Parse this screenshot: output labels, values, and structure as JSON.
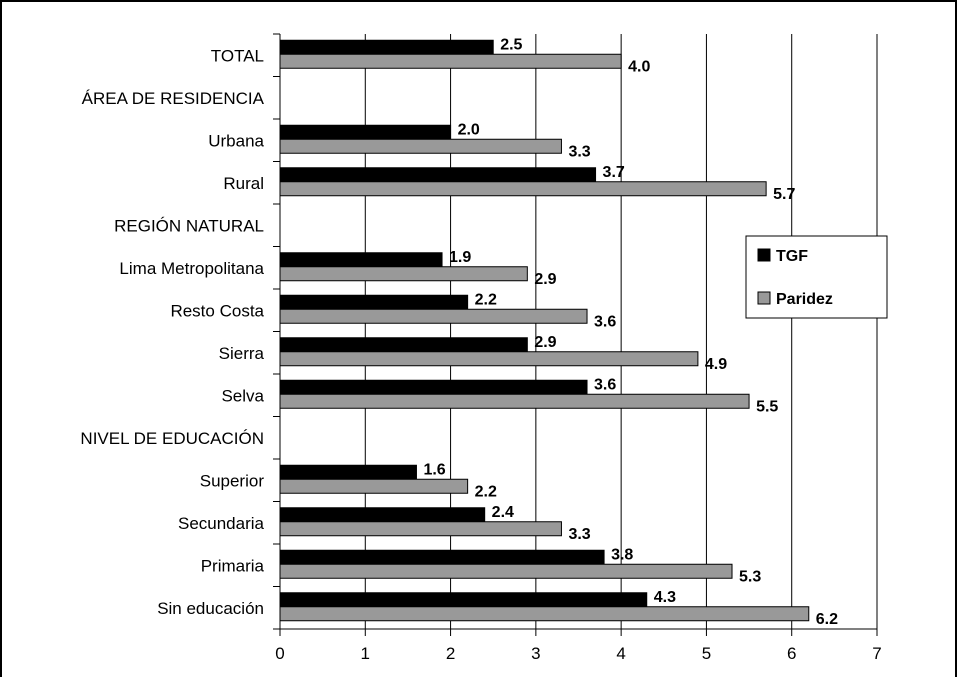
{
  "chart_data": {
    "type": "bar",
    "orientation": "horizontal",
    "categories": [
      "TOTAL",
      "ÁREA DE RESIDENCIA",
      "Urbana",
      "Rural",
      "REGIÓN NATURAL",
      "Lima Metropolitana",
      "Resto Costa",
      "Sierra",
      "Selva",
      "NIVEL DE EDUCACIÓN",
      "Superior",
      "Secundaria",
      "Primaria",
      "Sin educación"
    ],
    "series": [
      {
        "name": "TGF",
        "color": "#000000",
        "values": [
          2.5,
          null,
          2.0,
          3.7,
          null,
          1.9,
          2.2,
          2.9,
          3.6,
          null,
          1.6,
          2.4,
          3.8,
          4.3
        ],
        "labels": [
          "2.5",
          "",
          "2.0",
          "3.7",
          "",
          "1.9",
          "2.2",
          "2.9",
          "3.6",
          "",
          "1.6",
          "2.4",
          "3.8",
          "4.3"
        ]
      },
      {
        "name": "Paridez",
        "color": "#999999",
        "values": [
          4.0,
          null,
          3.3,
          5.7,
          null,
          2.9,
          3.6,
          4.9,
          5.5,
          null,
          2.2,
          3.3,
          5.3,
          6.2
        ],
        "labels": [
          "4.0",
          "",
          "3.3",
          "5.7",
          "",
          "2.9",
          "3.6",
          "4.9",
          "5.5",
          "",
          "2.2",
          "3.3",
          "5.3",
          "6.2"
        ]
      }
    ],
    "xlim": [
      0,
      7
    ],
    "ticks": [
      "0",
      "1",
      "2",
      "3",
      "4",
      "5",
      "6",
      "7"
    ],
    "grid": true,
    "legend": "right"
  }
}
